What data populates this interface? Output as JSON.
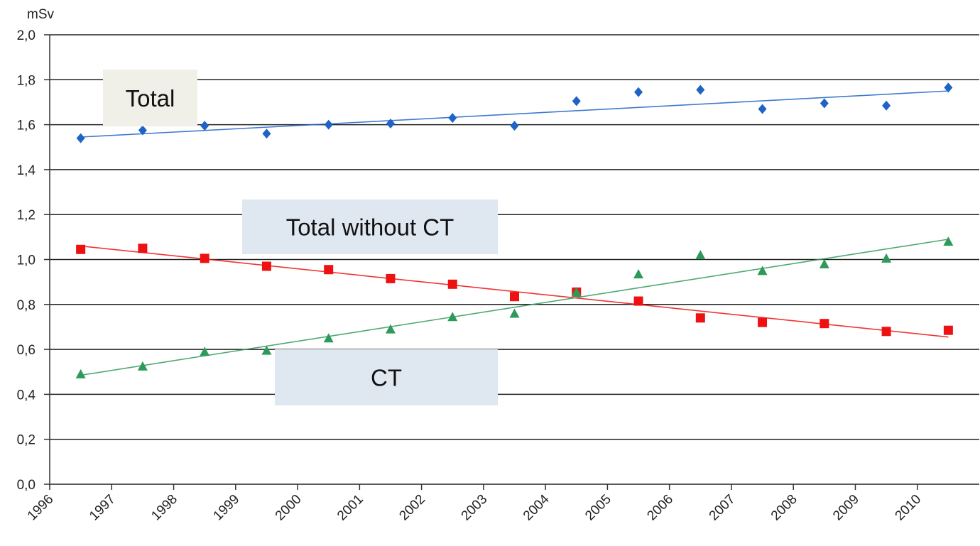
{
  "chart_data": {
    "type": "scatter",
    "y_label": "mSv",
    "x": [
      1996.5,
      1997.5,
      1998.5,
      1999.5,
      2000.5,
      2001.5,
      2002.5,
      2003.5,
      2004.5,
      2005.5,
      2006.5,
      2007.5,
      2008.5,
      2009.5,
      2010.5
    ],
    "series": [
      {
        "name": "Total",
        "color": "#1f63c6",
        "marker": "diamond",
        "values": [
          1.54,
          1.575,
          1.595,
          1.56,
          1.6,
          1.605,
          1.63,
          1.595,
          1.705,
          1.745,
          1.755,
          1.67,
          1.695,
          1.685,
          1.765
        ],
        "trend_values": [
          1.545,
          1.75
        ]
      },
      {
        "name": "Total without CT",
        "color": "#ee1111",
        "marker": "square",
        "values": [
          1.045,
          1.05,
          1.005,
          0.97,
          0.955,
          0.915,
          0.89,
          0.835,
          0.855,
          0.815,
          0.74,
          0.72,
          0.715,
          0.68,
          0.685
        ],
        "trend_values": [
          1.06,
          0.655
        ]
      },
      {
        "name": "CT",
        "color": "#2e9a5a",
        "marker": "triangle",
        "values": [
          0.49,
          0.525,
          0.59,
          0.595,
          0.65,
          0.69,
          0.745,
          0.76,
          0.855,
          0.935,
          1.02,
          0.95,
          0.98,
          1.005,
          1.08
        ],
        "trend_values": [
          0.485,
          1.09
        ]
      }
    ],
    "xlim": [
      1996,
      2011
    ],
    "xticks": [
      1996,
      1997,
      1998,
      1999,
      2000,
      2001,
      2002,
      2003,
      2004,
      2005,
      2006,
      2007,
      2008,
      2009,
      2010
    ],
    "ylim": [
      0,
      2
    ],
    "yticks": [
      {
        "value": 0,
        "label": "0,0"
      },
      {
        "value": 0.2,
        "label": "0,2"
      },
      {
        "value": 0.4,
        "label": "0,4"
      },
      {
        "value": 0.6,
        "label": "0,6"
      },
      {
        "value": 0.8,
        "label": "0,8"
      },
      {
        "value": 1,
        "label": "1,0"
      },
      {
        "value": 1.2,
        "label": "1,2"
      },
      {
        "value": 1.4,
        "label": "1,4"
      },
      {
        "value": 1.6,
        "label": "1,6"
      },
      {
        "value": 1.8,
        "label": "1,8"
      },
      {
        "value": 2,
        "label": "2,0"
      }
    ],
    "grid": true
  }
}
